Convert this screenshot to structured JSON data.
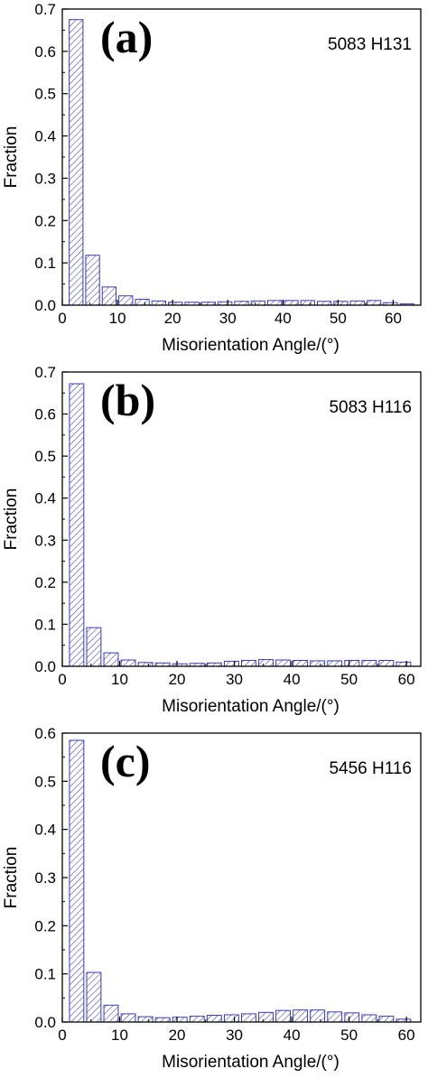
{
  "chart_data": [
    {
      "type": "bar",
      "panel_label": "(a)",
      "annotation": "5083 H131",
      "xlabel": "Misorientation Angle/(°)",
      "ylabel": "Fraction",
      "xlim": [
        0,
        65
      ],
      "ylim": [
        0,
        0.7
      ],
      "xticks": [
        0,
        10,
        20,
        30,
        40,
        50,
        60
      ],
      "yticks": [
        0.0,
        0.1,
        0.2,
        0.3,
        0.4,
        0.5,
        0.6,
        0.7
      ],
      "ytick_labels": [
        "0.0",
        "0.1",
        "0.2",
        "0.3",
        "0.4",
        "0.5",
        "0.6",
        "0.7"
      ],
      "bar_color": "#3b3bb0",
      "bar_width": 2.5,
      "x": [
        2.5,
        5.5,
        8.5,
        11.5,
        14.5,
        17.5,
        20.5,
        23.5,
        26.5,
        29.5,
        32.5,
        35.5,
        38.5,
        41.5,
        44.5,
        47.5,
        50.5,
        53.5,
        56.5,
        59.5,
        62.5
      ],
      "values": [
        0.675,
        0.118,
        0.043,
        0.022,
        0.014,
        0.01,
        0.007,
        0.007,
        0.007,
        0.008,
        0.009,
        0.01,
        0.011,
        0.011,
        0.011,
        0.009,
        0.009,
        0.01,
        0.011,
        0.006,
        0.003
      ]
    },
    {
      "type": "bar",
      "panel_label": "(b)",
      "annotation": "5083 H116",
      "xlabel": "Misorientation Angle/(°)",
      "ylabel": "Fraction",
      "xlim": [
        0,
        62.5
      ],
      "ylim": [
        0,
        0.7
      ],
      "xticks": [
        0,
        10,
        20,
        30,
        40,
        50,
        60
      ],
      "yticks": [
        0.0,
        0.1,
        0.2,
        0.3,
        0.4,
        0.5,
        0.6,
        0.7
      ],
      "ytick_labels": [
        "0.0",
        "0.1",
        "0.2",
        "0.3",
        "0.4",
        "0.5",
        "0.6",
        "0.7"
      ],
      "bar_color": "#3b3bb0",
      "bar_width": 2.5,
      "x": [
        2.5,
        5.5,
        8.5,
        11.5,
        14.5,
        17.5,
        20.5,
        23.5,
        26.5,
        29.5,
        32.5,
        35.5,
        38.5,
        41.5,
        44.5,
        47.5,
        50.5,
        53.5,
        56.5,
        59.5
      ],
      "values": [
        0.672,
        0.092,
        0.032,
        0.015,
        0.009,
        0.008,
        0.006,
        0.007,
        0.008,
        0.012,
        0.014,
        0.016,
        0.015,
        0.014,
        0.013,
        0.013,
        0.014,
        0.014,
        0.014,
        0.01
      ]
    },
    {
      "type": "bar",
      "panel_label": "(c)",
      "annotation": "5456 H116",
      "xlabel": "Misorientation Angle/(°)",
      "ylabel": "Fraction",
      "xlim": [
        0,
        62.5
      ],
      "ylim": [
        0,
        0.6
      ],
      "xticks": [
        0,
        10,
        20,
        30,
        40,
        50,
        60
      ],
      "yticks": [
        0.0,
        0.1,
        0.2,
        0.3,
        0.4,
        0.5,
        0.6
      ],
      "ytick_labels": [
        "0.0",
        "0.1",
        "0.2",
        "0.3",
        "0.4",
        "0.5",
        "0.6"
      ],
      "bar_color": "#3b3bb0",
      "bar_width": 2.5,
      "x": [
        2.5,
        5.5,
        8.5,
        11.5,
        14.5,
        17.5,
        20.5,
        23.5,
        26.5,
        29.5,
        32.5,
        35.5,
        38.5,
        41.5,
        44.5,
        47.5,
        50.5,
        53.5,
        56.5,
        59.5
      ],
      "values": [
        0.585,
        0.103,
        0.035,
        0.017,
        0.011,
        0.009,
        0.01,
        0.012,
        0.014,
        0.015,
        0.017,
        0.02,
        0.024,
        0.025,
        0.025,
        0.021,
        0.019,
        0.015,
        0.012,
        0.006
      ]
    }
  ]
}
